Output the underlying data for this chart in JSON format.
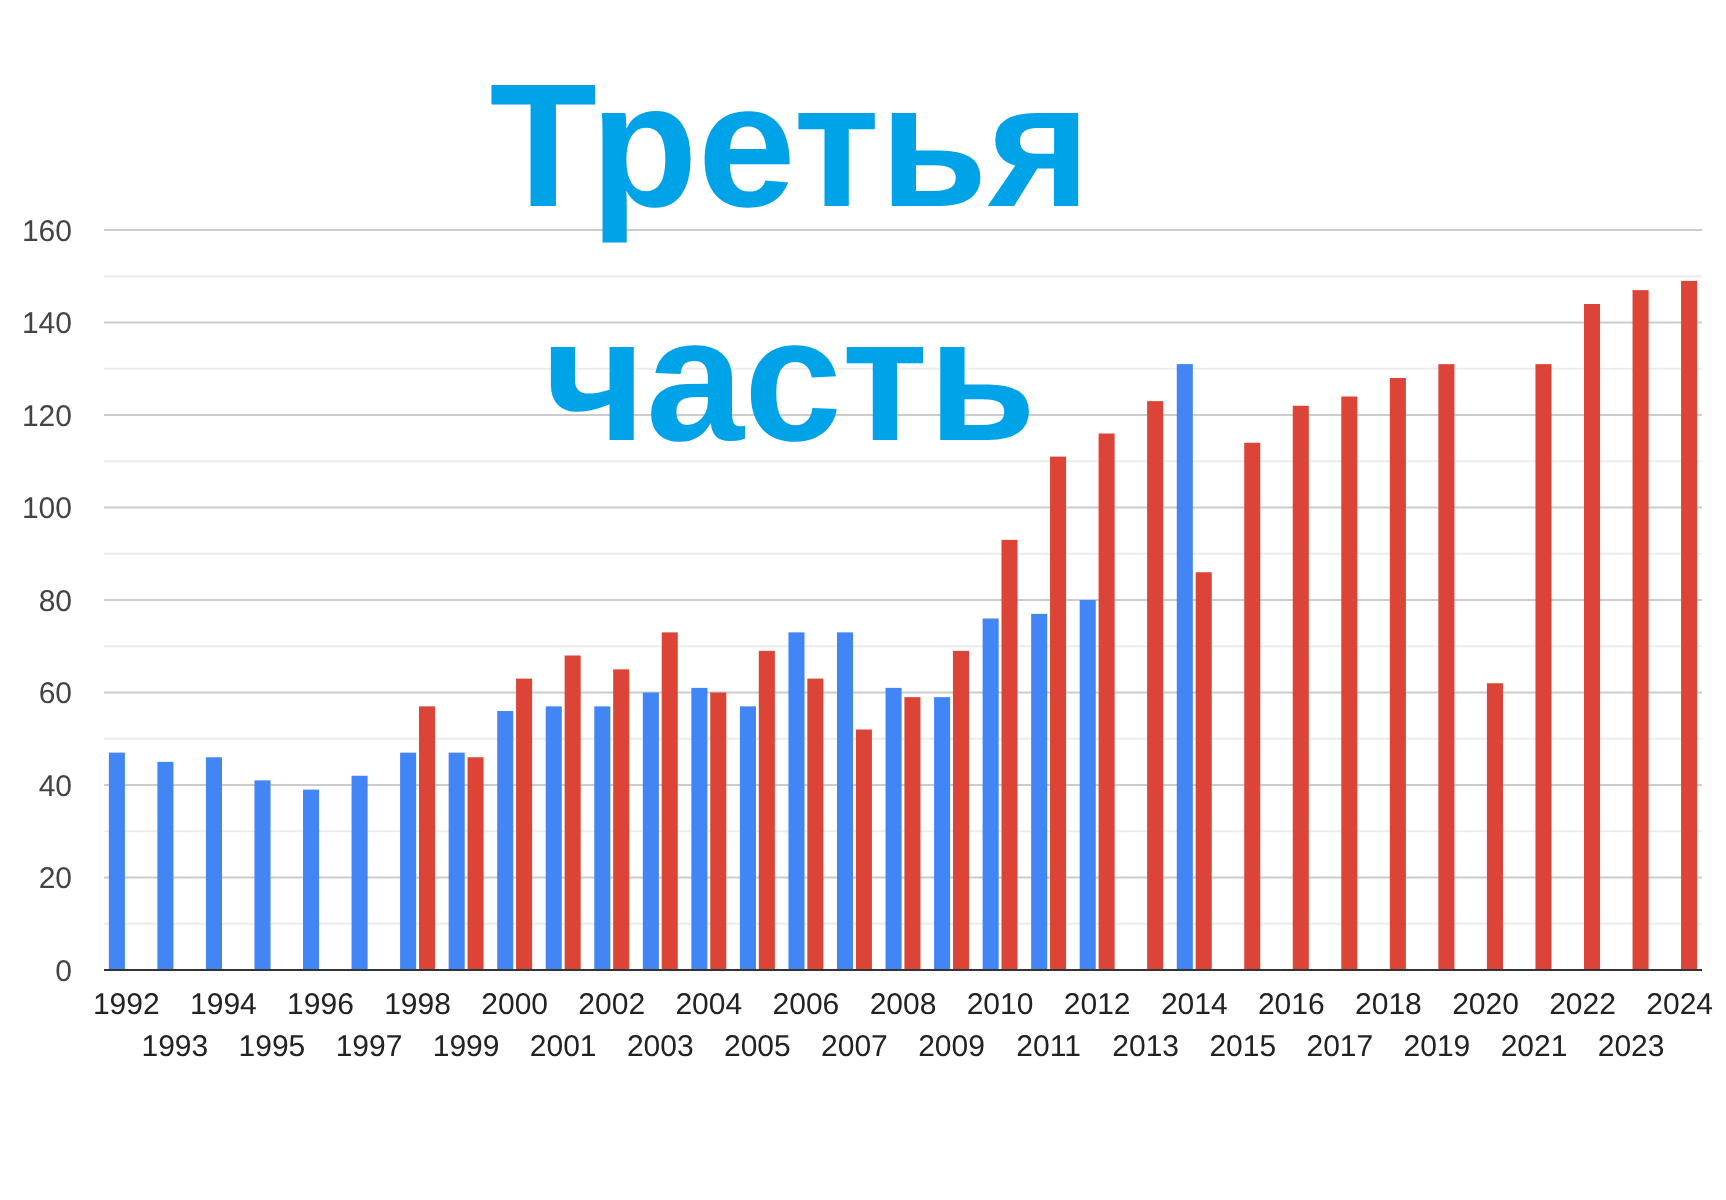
{
  "chart_data": {
    "type": "bar",
    "title": "Третья часть",
    "categories": [
      "1992",
      "1993",
      "1994",
      "1995",
      "1996",
      "1997",
      "1998",
      "1999",
      "2000",
      "2001",
      "2002",
      "2003",
      "2004",
      "2005",
      "2006",
      "2007",
      "2008",
      "2009",
      "2010",
      "2011",
      "2012",
      "2013",
      "2014",
      "2015",
      "2016",
      "2017",
      "2018",
      "2019",
      "2020",
      "2021",
      "2022",
      "2023",
      "2024"
    ],
    "series": [
      {
        "color": "#4285f4",
        "values": [
          47,
          45,
          46,
          41,
          39,
          42,
          47,
          47,
          56,
          57,
          57,
          60,
          61,
          57,
          73,
          73,
          61,
          59,
          76,
          77,
          80,
          null,
          131,
          null,
          null,
          null,
          null,
          null,
          null,
          null,
          null,
          null,
          null
        ]
      },
      {
        "color": "#db4437",
        "values": [
          null,
          null,
          null,
          null,
          null,
          null,
          57,
          46,
          63,
          68,
          65,
          73,
          60,
          69,
          63,
          52,
          59,
          69,
          93,
          111,
          116,
          123,
          86,
          114,
          122,
          124,
          128,
          131,
          62,
          131,
          144,
          147,
          149
        ]
      }
    ],
    "ylim": [
      0,
      160
    ],
    "yticks": [
      0,
      {
        "value": 10,
        "label": null
      },
      20,
      {
        "value": 30,
        "label": null
      },
      40,
      {
        "value": 50,
        "label": null
      },
      60,
      {
        "value": 70,
        "label": null
      },
      80,
      {
        "value": 90,
        "label": null
      },
      100,
      {
        "value": 110,
        "label": null
      },
      120,
      {
        "value": 130,
        "label": null
      },
      140,
      {
        "value": 150,
        "label": null
      },
      160
    ],
    "grid": "y"
  }
}
